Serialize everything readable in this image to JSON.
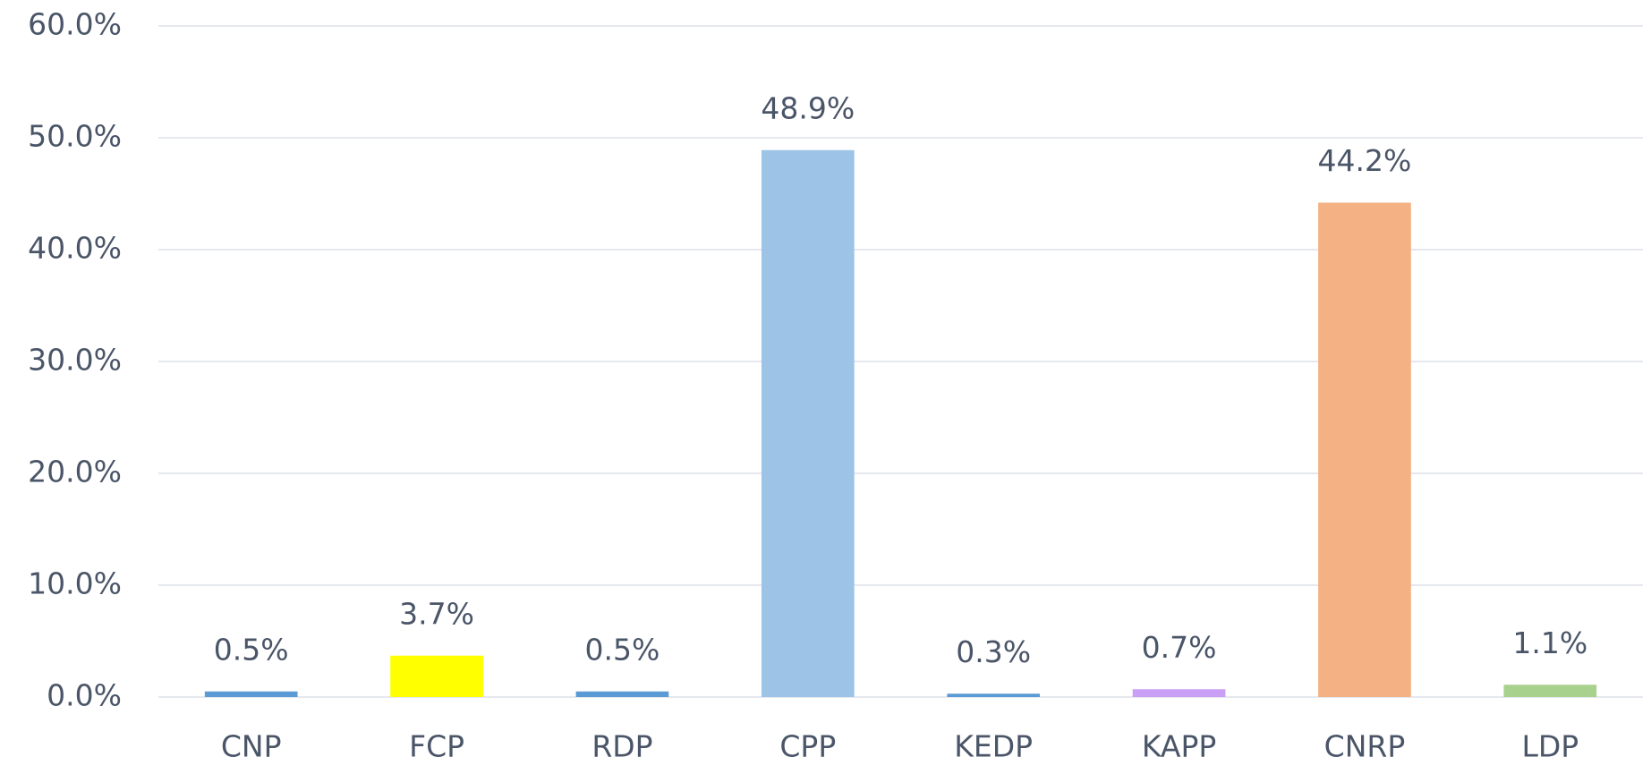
{
  "chart_data": {
    "type": "bar",
    "categories": [
      "CNP",
      "FCP",
      "RDP",
      "CPP",
      "KEDP",
      "KAPP",
      "CNRP",
      "LDP"
    ],
    "values": [
      0.5,
      3.7,
      0.5,
      48.9,
      0.3,
      0.7,
      44.2,
      1.1
    ],
    "value_labels": [
      "0.5%",
      "3.7%",
      "0.5%",
      "48.9%",
      "0.3%",
      "0.7%",
      "44.2%",
      "1.1%"
    ],
    "colors": [
      "#5b9bd5",
      "#ffff00",
      "#5b9bd5",
      "#9dc3e6",
      "#5b9bd5",
      "#c9a0f5",
      "#f4b183",
      "#a9d18e"
    ],
    "ylim": [
      0,
      60
    ],
    "yticks": [
      {
        "value": 0,
        "label": "0.0%"
      },
      {
        "value": 10,
        "label": "10.0%"
      },
      {
        "value": 20,
        "label": "20.0%"
      },
      {
        "value": 30,
        "label": "30.0%"
      },
      {
        "value": 40,
        "label": "40.0%"
      },
      {
        "value": 50,
        "label": "50.0%"
      },
      {
        "value": 60,
        "label": "60.0%"
      }
    ],
    "grid": true
  }
}
